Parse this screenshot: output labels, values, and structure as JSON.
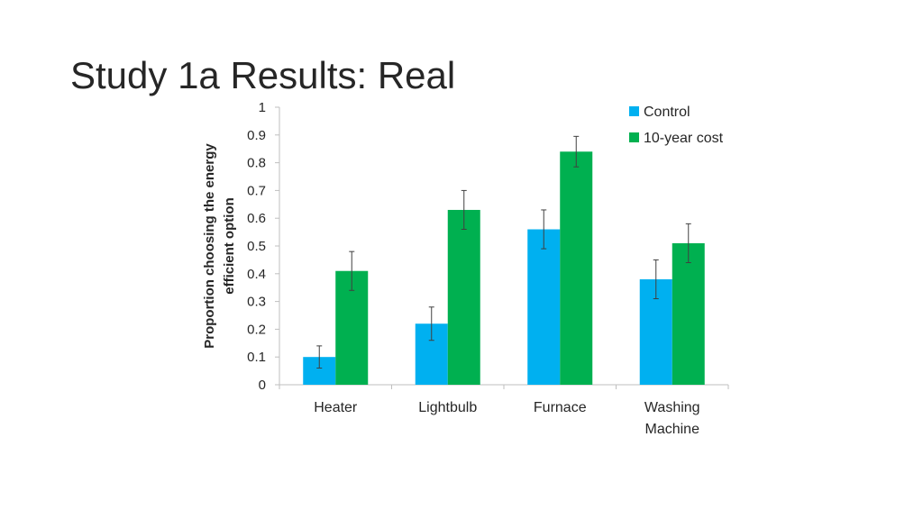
{
  "slide": {
    "title": "Study 1a Results: Real"
  },
  "chart_data": {
    "type": "bar",
    "title": "",
    "xlabel": "",
    "ylabel_lines": [
      "Proportion choosing the energy",
      "efficient option"
    ],
    "categories": [
      [
        "Heater"
      ],
      [
        "Lightbulb"
      ],
      [
        "Furnace"
      ],
      [
        "Washing",
        "Machine"
      ]
    ],
    "series": [
      {
        "name": "Control",
        "color": "#00b0f0",
        "values": [
          0.1,
          0.22,
          0.56,
          0.38
        ],
        "error": [
          0.04,
          0.06,
          0.07,
          0.07
        ]
      },
      {
        "name": "10-year cost",
        "color": "#00b050",
        "values": [
          0.41,
          0.63,
          0.84,
          0.51
        ],
        "error": [
          0.07,
          0.07,
          0.055,
          0.07
        ]
      }
    ],
    "ylim": [
      0,
      1
    ],
    "yticks": [
      "0",
      "0.1",
      "0.2",
      "0.3",
      "0.4",
      "0.5",
      "0.6",
      "0.7",
      "0.8",
      "0.9",
      "1"
    ],
    "grid": false,
    "legend_position": "top-right",
    "error_bars": true
  }
}
